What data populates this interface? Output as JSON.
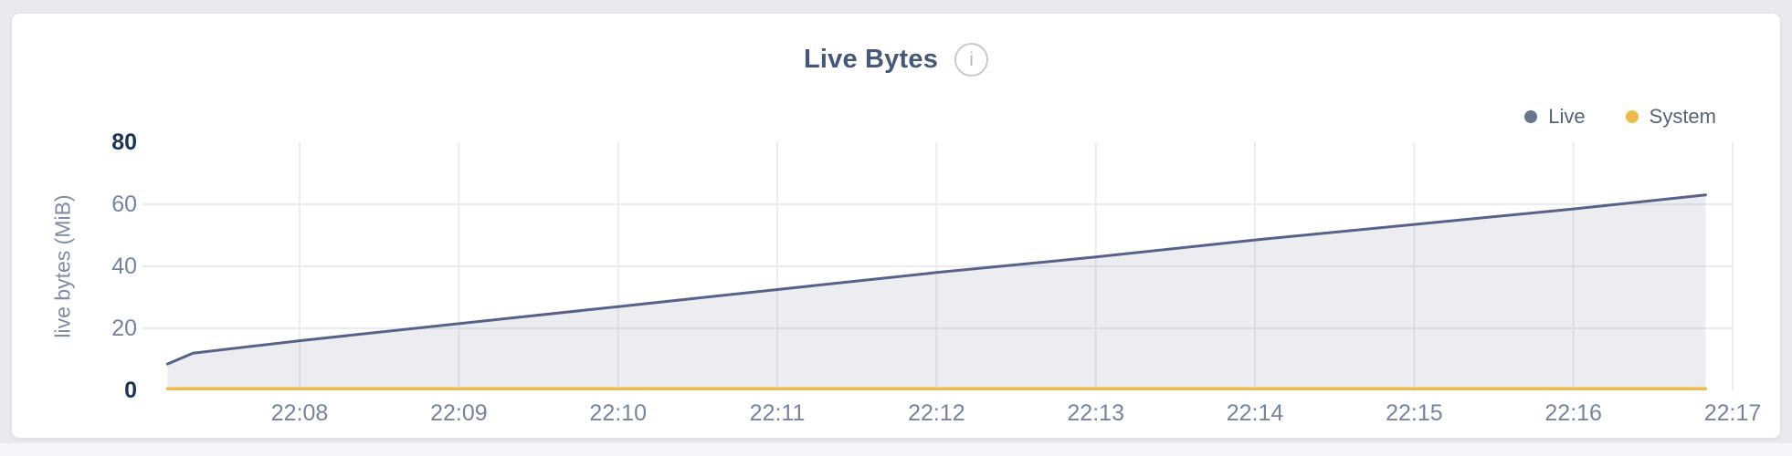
{
  "page": {
    "background_color": "#e9eaee",
    "bottom_strip_color": "#f4f6f9"
  },
  "card": {
    "background_color": "#ffffff",
    "border_color": "#e3e4e8"
  },
  "header": {
    "title": "Live Bytes",
    "info_icon_glyph": "i"
  },
  "legend": {
    "position": "top-right",
    "items": [
      {
        "label": "Live",
        "color": "#67748e"
      },
      {
        "label": "System",
        "color": "#ecba4d"
      }
    ]
  },
  "chart_data": {
    "type": "area",
    "title": "Live Bytes",
    "xlabel": "",
    "ylabel": "live bytes (MiB)",
    "grid": true,
    "legend_position": "top-right",
    "ylim": [
      0,
      80
    ],
    "xlim_minutes_after_2200": [
      7.013,
      17
    ],
    "y_ticks": [
      0,
      20,
      40,
      60,
      80
    ],
    "y_tick_labels": [
      "0",
      "20",
      "40",
      "60",
      "80"
    ],
    "y_ticks_bold": [
      "0",
      "80"
    ],
    "y_gridline_values": [
      20,
      40,
      60
    ],
    "x_tick_labels": [
      "22:08",
      "22:09",
      "22:10",
      "22:11",
      "22:12",
      "22:13",
      "22:14",
      "22:15",
      "22:16",
      "22:17"
    ],
    "x_tick_minutes_after_2200": [
      8,
      9,
      10,
      11,
      12,
      13,
      14,
      15,
      16,
      17
    ],
    "series": [
      {
        "name": "Live",
        "color": "#57628a",
        "fill": "rgba(93,107,137,0.12)",
        "stroke_width": 3,
        "x_time": [
          "22:07:10",
          "22:07:20",
          "22:08:00",
          "22:09:00",
          "22:10:00",
          "22:11:00",
          "22:12:00",
          "22:13:00",
          "22:14:00",
          "22:15:00",
          "22:16:00",
          "22:16:50"
        ],
        "x_minutes_after_2200": [
          7.17,
          7.33,
          8,
          9,
          10,
          11,
          12,
          13,
          14,
          15,
          16,
          16.83
        ],
        "values_mib": [
          8.5,
          12,
          16,
          21.5,
          27,
          32.5,
          38,
          43,
          48.5,
          53.5,
          58.5,
          63
        ]
      },
      {
        "name": "System",
        "color": "#eebc4e",
        "fill": "none",
        "stroke_width": 3.5,
        "x_time": [
          "22:07:10",
          "22:16:50"
        ],
        "x_minutes_after_2200": [
          7.17,
          16.83
        ],
        "values_mib": [
          0.5,
          0.5
        ]
      }
    ],
    "gridline_color": "#ebecee"
  }
}
